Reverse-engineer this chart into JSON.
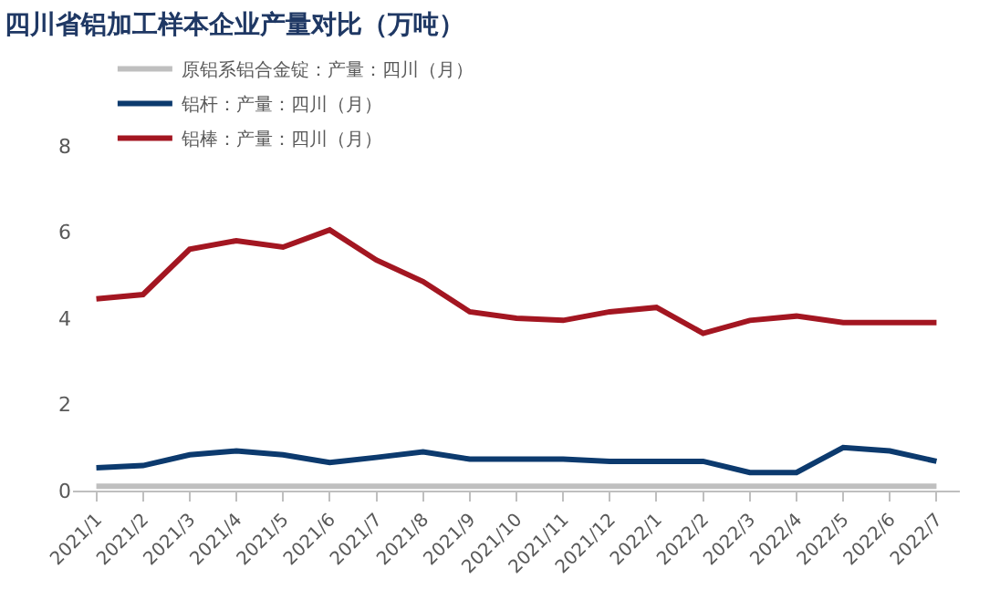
{
  "chart_data": {
    "type": "line",
    "title": "四川省铝加工样本企业产量对比（万吨）",
    "categories": [
      "2021/1",
      "2021/2",
      "2021/3",
      "2021/4",
      "2021/5",
      "2021/6",
      "2021/7",
      "2021/8",
      "2021/9",
      "2021/10",
      "2021/11",
      "2021/12",
      "2022/1",
      "2022/2",
      "2022/3",
      "2022/4",
      "2022/5",
      "2022/6",
      "2022/7"
    ],
    "series": [
      {
        "name": "原铝系铝合金锭：产量：四川（月）",
        "color": "#bfbfbf",
        "values": [
          0.1,
          0.1,
          0.1,
          0.1,
          0.1,
          0.1,
          0.1,
          0.1,
          0.1,
          0.1,
          0.1,
          0.1,
          0.1,
          0.1,
          0.1,
          0.1,
          0.1,
          0.1,
          0.1
        ]
      },
      {
        "name": "铝杆：产量：四川（月）",
        "color": "#0c3a6e",
        "values": [
          0.53,
          0.58,
          0.83,
          0.92,
          0.83,
          0.65,
          0.77,
          0.9,
          0.73,
          0.73,
          0.73,
          0.68,
          0.68,
          0.68,
          0.42,
          0.42,
          1.0,
          0.92,
          0.68
        ]
      },
      {
        "name": "铝棒：产量：四川（月）",
        "color": "#a31621",
        "values": [
          4.45,
          4.55,
          5.6,
          5.8,
          5.65,
          6.05,
          5.35,
          4.85,
          4.15,
          4.0,
          3.95,
          4.15,
          4.25,
          3.65,
          3.95,
          4.05,
          3.9,
          3.9,
          3.9
        ]
      }
    ],
    "ylim": [
      0,
      8
    ],
    "yticks": [
      0,
      2,
      4,
      6,
      8
    ],
    "legend": "top",
    "marker": "none",
    "line_style": "solid"
  }
}
